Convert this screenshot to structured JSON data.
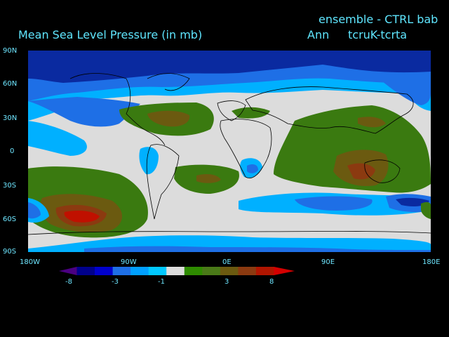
{
  "header": {
    "title": "Mean Sea Level Pressure (in mb)",
    "ensemble": "ensemble - CTRL bab",
    "period": "Ann",
    "variable": "tcruK-tcrta"
  },
  "axes": {
    "lat_labels": [
      "90N",
      "60N",
      "30N",
      "0",
      "30S",
      "60S",
      "90S"
    ],
    "lon_labels": [
      "180W",
      "90W",
      "0E",
      "90E",
      "180E"
    ]
  },
  "colorbar": {
    "labels": [
      "-8",
      "-3",
      "-1",
      "3",
      "8"
    ],
    "colors": [
      "#4b0082",
      "#00008b",
      "#0000cd",
      "#1e6fe6",
      "#00a0ff",
      "#00c8ff",
      "#dcdcdc",
      "#2e8b00",
      "#4a7a18",
      "#6b5a10",
      "#8b3a10",
      "#b01500",
      "#d40000"
    ]
  },
  "palette": {
    "background": "#000000",
    "neutral": "#dcdcdc",
    "dark_blue": "#0a2aa0",
    "blue": "#1e6fe6",
    "light_blue": "#00b0ff",
    "green": "#3a7a10",
    "olive": "#6b5a10",
    "brown": "#8b3a10",
    "red": "#c01000",
    "text": "#5fe6ff"
  }
}
